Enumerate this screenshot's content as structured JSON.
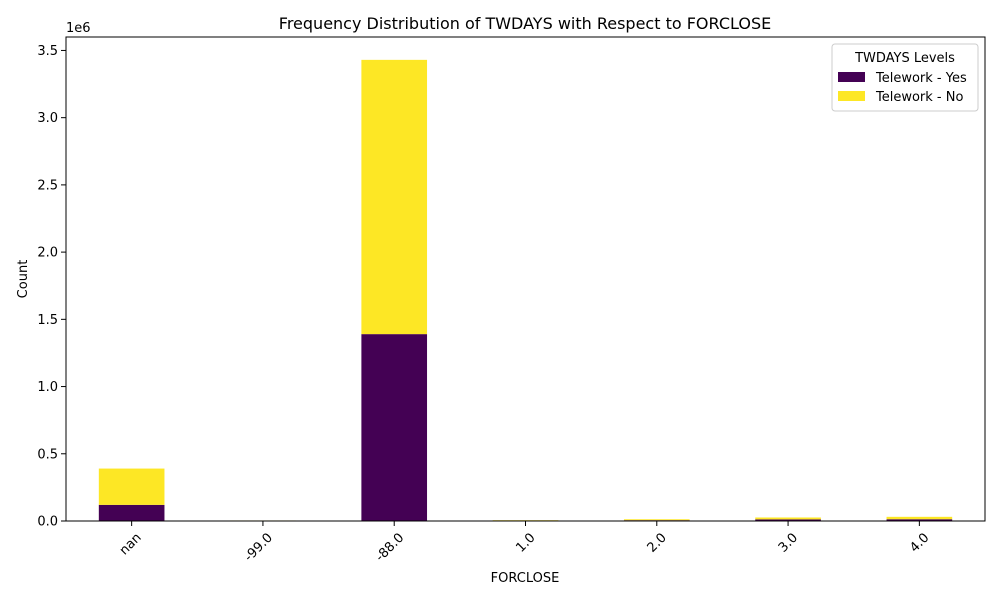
{
  "chart_data": {
    "type": "bar",
    "stacked": true,
    "title": "Frequency Distribution of TWDAYS with Respect to FORCLOSE",
    "xlabel": "FORCLOSE",
    "ylabel": "Count",
    "y_offset_label": "1e6",
    "categories": [
      "nan",
      "-99.0",
      "-88.0",
      "1.0",
      "2.0",
      "3.0",
      "4.0"
    ],
    "series": [
      {
        "name": "Telework - Yes",
        "color": "#440154",
        "values": [
          120000,
          1000,
          1390000,
          4000,
          6000,
          12000,
          13000
        ]
      },
      {
        "name": "Telework - No",
        "color": "#fde725",
        "values": [
          270000,
          3000,
          2040000,
          2000,
          7000,
          14000,
          18000
        ]
      }
    ],
    "ylim": [
      0,
      3600000
    ],
    "yticks": [
      0,
      500000,
      1000000,
      1500000,
      2000000,
      2500000,
      3000000,
      3500000
    ],
    "ytick_labels": [
      "0.0",
      "0.5",
      "1.0",
      "1.5",
      "2.0",
      "2.5",
      "3.0",
      "3.5"
    ],
    "legend": {
      "title": "TWDAYS Levels",
      "placement": "top-right"
    },
    "grid": false
  }
}
